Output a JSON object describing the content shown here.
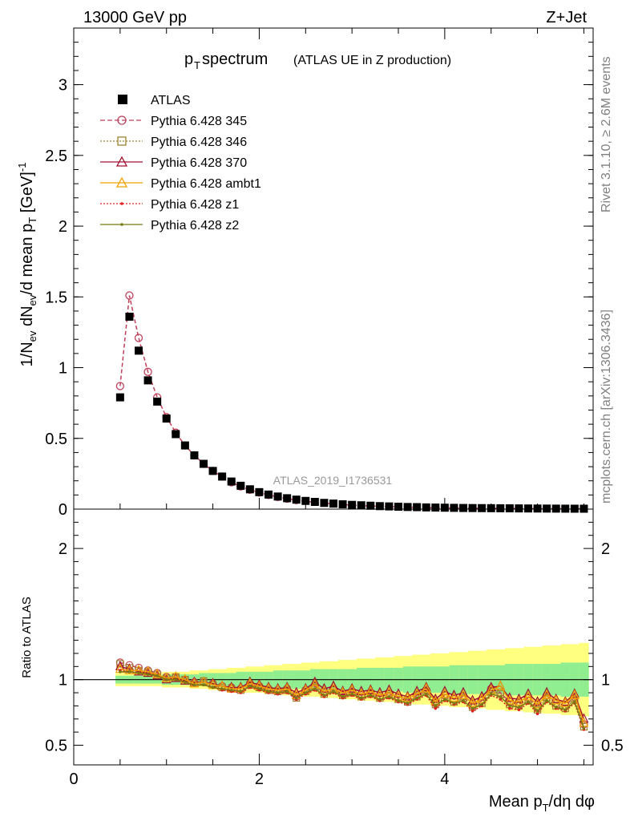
{
  "header": {
    "left": "13000 GeV pp",
    "right": "Z+Jet",
    "side_top": "Rivet 3.1.10, ≥ 2.6M events",
    "side_bottom": "mcplots.cern.ch [arXiv:1306.3436]"
  },
  "colors": {
    "data": "#000000",
    "band_inner": "#90ee90",
    "band_outer": "#ffff80",
    "p345": "#c0405a",
    "p346": "#a08030",
    "p370": "#a01030",
    "ambt1": "#f0a000",
    "z1": "#e02020",
    "z2": "#7a7a10"
  },
  "chart_data": [
    {
      "type": "line",
      "title": "p",
      "title_sub": "T",
      "title_main": " spectrum",
      "title_note": "(ATLAS UE in Z production)",
      "ylabel": "1/N_ev dN_ev/d mean p_T [GeV]^-1",
      "watermark": "ATLAS_2019_I1736531",
      "ylim": [
        0,
        3.4
      ],
      "xlim": [
        0,
        5.6
      ],
      "yticks": [
        "0",
        "0.5",
        "1",
        "1.5",
        "2",
        "2.5",
        "3"
      ],
      "x": [
        0.5,
        0.6,
        0.7,
        0.8,
        0.9,
        1.0,
        1.1,
        1.2,
        1.3,
        1.4,
        1.5,
        1.6,
        1.7,
        1.8,
        1.9,
        2.0,
        2.1,
        2.2,
        2.3,
        2.4,
        2.5,
        2.6,
        2.7,
        2.8,
        2.9,
        3.0,
        3.1,
        3.2,
        3.3,
        3.4,
        3.5,
        3.6,
        3.7,
        3.8,
        3.9,
        4.0,
        4.1,
        4.2,
        4.3,
        4.4,
        4.5,
        4.6,
        4.7,
        4.8,
        4.9,
        5.0,
        5.1,
        5.2,
        5.3,
        5.4,
        5.5
      ],
      "legend": [
        {
          "key": "data",
          "label": "ATLAS"
        },
        {
          "key": "p345",
          "label": "Pythia 6.428 345"
        },
        {
          "key": "p346",
          "label": "Pythia 6.428 346"
        },
        {
          "key": "p370",
          "label": "Pythia 6.428 370"
        },
        {
          "key": "ambt1",
          "label": "Pythia 6.428 ambt1"
        },
        {
          "key": "z1",
          "label": "Pythia 6.428 z1"
        },
        {
          "key": "z2",
          "label": "Pythia 6.428 z2"
        }
      ],
      "data_values": [
        0.79,
        1.36,
        1.12,
        0.91,
        0.76,
        0.64,
        0.53,
        0.45,
        0.38,
        0.32,
        0.27,
        0.23,
        0.195,
        0.165,
        0.14,
        0.12,
        0.103,
        0.089,
        0.077,
        0.067,
        0.058,
        0.051,
        0.044,
        0.039,
        0.034,
        0.03,
        0.027,
        0.024,
        0.021,
        0.019,
        0.017,
        0.015,
        0.014,
        0.012,
        0.011,
        0.01,
        0.009,
        0.008,
        0.0075,
        0.007,
        0.0065,
        0.006,
        0.0055,
        0.005,
        0.0046,
        0.0042,
        0.0038,
        0.0035,
        0.0032,
        0.003,
        0.0028
      ],
      "series": [
        {
          "key": "p345",
          "name": "Pythia 6.428 345",
          "values": [
            0.87,
            1.51,
            1.21,
            0.97,
            0.79,
            0.65,
            0.54,
            0.45,
            0.38,
            0.32,
            0.27,
            0.23,
            0.19,
            0.16,
            0.137,
            0.117,
            0.1,
            0.086,
            0.074,
            0.064,
            0.055,
            0.048,
            0.042,
            0.037,
            0.032,
            0.028,
            0.025,
            0.022,
            0.02,
            0.018,
            0.016,
            0.014,
            0.013,
            0.011,
            0.01,
            0.009,
            0.0085,
            0.0075,
            0.007,
            0.0065,
            0.006,
            0.0055,
            0.005,
            0.0046,
            0.0042,
            0.0038,
            0.0034,
            0.0031,
            0.0029,
            0.0027,
            0.0025
          ]
        }
      ]
    },
    {
      "type": "line",
      "ylabel": "Ratio to ATLAS",
      "xlabel": "Mean p_T/dη dφ",
      "ylim": [
        0.35,
        2.3
      ],
      "xlim": [
        0,
        5.6
      ],
      "yticks": [
        "0.5",
        "1",
        "2"
      ],
      "xticks": [
        "0",
        "2",
        "4"
      ],
      "x": [
        0.5,
        0.6,
        0.7,
        0.8,
        0.9,
        1.0,
        1.1,
        1.2,
        1.3,
        1.4,
        1.5,
        1.6,
        1.7,
        1.8,
        1.9,
        2.0,
        2.1,
        2.2,
        2.3,
        2.4,
        2.5,
        2.6,
        2.7,
        2.8,
        2.9,
        3.0,
        3.1,
        3.2,
        3.3,
        3.4,
        3.5,
        3.6,
        3.7,
        3.8,
        3.9,
        4.0,
        4.1,
        4.2,
        4.3,
        4.4,
        4.5,
        4.6,
        4.7,
        4.8,
        4.9,
        5.0,
        5.1,
        5.2,
        5.3,
        5.4,
        5.5
      ],
      "band_inner": [
        0.03,
        0.03,
        0.03,
        0.03,
        0.03,
        0.04,
        0.04,
        0.04,
        0.04,
        0.05,
        0.05,
        0.05,
        0.05,
        0.06,
        0.06,
        0.06,
        0.06,
        0.07,
        0.07,
        0.07,
        0.07,
        0.08,
        0.08,
        0.08,
        0.08,
        0.08,
        0.09,
        0.09,
        0.09,
        0.09,
        0.09,
        0.1,
        0.1,
        0.1,
        0.1,
        0.1,
        0.11,
        0.11,
        0.11,
        0.11,
        0.11,
        0.11,
        0.12,
        0.12,
        0.12,
        0.12,
        0.12,
        0.12,
        0.13,
        0.13,
        0.13
      ],
      "band_outer": [
        0.05,
        0.05,
        0.05,
        0.05,
        0.05,
        0.06,
        0.06,
        0.06,
        0.07,
        0.07,
        0.08,
        0.08,
        0.09,
        0.09,
        0.1,
        0.1,
        0.11,
        0.11,
        0.12,
        0.12,
        0.13,
        0.13,
        0.14,
        0.14,
        0.15,
        0.15,
        0.16,
        0.16,
        0.17,
        0.17,
        0.18,
        0.18,
        0.19,
        0.19,
        0.2,
        0.2,
        0.21,
        0.21,
        0.22,
        0.22,
        0.23,
        0.23,
        0.24,
        0.24,
        0.25,
        0.25,
        0.26,
        0.26,
        0.27,
        0.27,
        0.28
      ],
      "series": [
        {
          "key": "p345",
          "name": "Pythia 6.428 345",
          "values": [
            1.13,
            1.11,
            1.09,
            1.07,
            1.05,
            1.02,
            1.02,
            1.0,
            0.98,
            0.98,
            0.97,
            0.95,
            0.94,
            0.93,
            0.97,
            0.95,
            0.93,
            0.92,
            0.93,
            0.87,
            0.92,
            0.95,
            0.9,
            0.93,
            0.89,
            0.91,
            0.88,
            0.9,
            0.87,
            0.89,
            0.86,
            0.84,
            0.88,
            0.92,
            0.82,
            0.88,
            0.85,
            0.87,
            0.8,
            0.84,
            0.93,
            0.9,
            0.83,
            0.81,
            0.86,
            0.79,
            0.88,
            0.82,
            0.8,
            0.87,
            0.66
          ]
        },
        {
          "key": "p346",
          "name": "Pythia 6.428 346",
          "values": [
            1.12,
            1.09,
            1.07,
            1.06,
            1.04,
            1.01,
            1.02,
            1.0,
            0.97,
            0.99,
            0.96,
            0.94,
            0.93,
            0.92,
            0.96,
            0.94,
            0.92,
            0.91,
            0.92,
            0.86,
            0.91,
            0.94,
            0.89,
            0.92,
            0.88,
            0.9,
            0.87,
            0.89,
            0.86,
            0.88,
            0.85,
            0.83,
            0.87,
            0.91,
            0.81,
            0.86,
            0.83,
            0.86,
            0.79,
            0.82,
            0.91,
            0.89,
            0.81,
            0.8,
            0.84,
            0.77,
            0.86,
            0.8,
            0.78,
            0.85,
            0.64
          ]
        },
        {
          "key": "p370",
          "name": "Pythia 6.428 370",
          "values": [
            1.1,
            1.08,
            1.06,
            1.05,
            1.03,
            1.0,
            1.01,
            0.99,
            0.98,
            0.98,
            0.97,
            0.95,
            0.94,
            0.94,
            0.98,
            0.96,
            0.94,
            0.93,
            0.94,
            0.9,
            0.93,
            0.98,
            0.93,
            0.95,
            0.91,
            0.93,
            0.91,
            0.92,
            0.9,
            0.92,
            0.89,
            0.87,
            0.91,
            0.94,
            0.85,
            0.91,
            0.88,
            0.9,
            0.84,
            0.87,
            0.94,
            0.95,
            0.86,
            0.85,
            0.89,
            0.83,
            0.9,
            0.85,
            0.83,
            0.89,
            0.7
          ]
        },
        {
          "key": "ambt1",
          "name": "Pythia 6.428 ambt1",
          "values": [
            1.08,
            1.07,
            1.07,
            1.06,
            1.04,
            1.01,
            1.02,
            1.0,
            0.97,
            0.98,
            0.96,
            0.95,
            0.93,
            0.93,
            0.97,
            0.95,
            0.93,
            0.92,
            0.93,
            0.88,
            0.92,
            0.96,
            0.91,
            0.93,
            0.9,
            0.92,
            0.89,
            0.91,
            0.88,
            0.9,
            0.87,
            0.86,
            0.89,
            0.93,
            0.83,
            0.89,
            0.86,
            0.88,
            0.82,
            0.85,
            0.92,
            0.95,
            0.84,
            0.83,
            0.87,
            0.81,
            0.88,
            0.84,
            0.82,
            0.88,
            0.67
          ]
        },
        {
          "key": "z1",
          "name": "Pythia 6.428 z1",
          "values": [
            1.07,
            1.06,
            1.05,
            1.04,
            1.03,
            1.0,
            1.0,
            0.98,
            0.96,
            0.96,
            0.94,
            0.92,
            0.91,
            0.9,
            0.94,
            0.92,
            0.9,
            0.89,
            0.9,
            0.85,
            0.89,
            0.92,
            0.87,
            0.9,
            0.86,
            0.88,
            0.85,
            0.87,
            0.84,
            0.86,
            0.83,
            0.81,
            0.85,
            0.88,
            0.78,
            0.84,
            0.81,
            0.83,
            0.76,
            0.8,
            0.88,
            0.85,
            0.78,
            0.77,
            0.82,
            0.74,
            0.83,
            0.78,
            0.76,
            0.82,
            0.62
          ]
        },
        {
          "key": "z2",
          "name": "Pythia 6.428 z2",
          "values": [
            1.06,
            1.06,
            1.05,
            1.04,
            1.03,
            1.0,
            1.0,
            0.98,
            0.96,
            0.96,
            0.94,
            0.93,
            0.92,
            0.91,
            0.95,
            0.93,
            0.91,
            0.9,
            0.91,
            0.86,
            0.9,
            0.93,
            0.88,
            0.91,
            0.87,
            0.89,
            0.86,
            0.88,
            0.85,
            0.87,
            0.84,
            0.82,
            0.86,
            0.89,
            0.8,
            0.85,
            0.82,
            0.84,
            0.78,
            0.81,
            0.89,
            0.87,
            0.8,
            0.79,
            0.83,
            0.76,
            0.84,
            0.79,
            0.77,
            0.83,
            0.63
          ]
        }
      ]
    }
  ]
}
